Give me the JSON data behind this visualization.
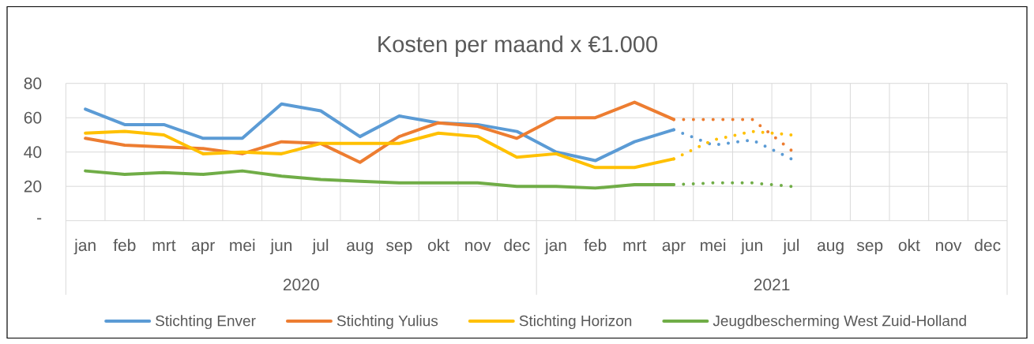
{
  "chart_data": {
    "type": "line",
    "title": "Kosten per maand x €1.000",
    "categories": [
      "jan",
      "feb",
      "mrt",
      "apr",
      "mei",
      "jun",
      "jul",
      "aug",
      "sep",
      "okt",
      "nov",
      "dec",
      "jan",
      "feb",
      "mrt",
      "apr",
      "mei",
      "jun",
      "jul",
      "aug",
      "sep",
      "okt",
      "nov",
      "dec"
    ],
    "series": [
      {
        "name": "Stichting Enver",
        "color": "#5b9bd5",
        "values": [
          65,
          56,
          56,
          48,
          48,
          68,
          64,
          49,
          61,
          57,
          56,
          52,
          40,
          35,
          46,
          53,
          null,
          null,
          null,
          null,
          null,
          null,
          null,
          null
        ]
      },
      {
        "name": "Stichting Yulius",
        "color": "#ed7d31",
        "values": [
          48,
          44,
          43,
          42,
          39,
          46,
          45,
          34,
          49,
          57,
          55,
          48,
          60,
          60,
          69,
          59,
          null,
          null,
          null,
          null,
          null,
          null,
          null,
          null
        ]
      },
      {
        "name": "Stichting Horizon",
        "color": "#ffc000",
        "values": [
          51,
          52,
          50,
          39,
          40,
          39,
          45,
          45,
          45,
          51,
          49,
          37,
          39,
          31,
          31,
          36,
          null,
          null,
          null,
          null,
          null,
          null,
          null,
          null
        ]
      },
      {
        "name": "Jeugdbescherming West Zuid-Holland",
        "color": "#70ad47",
        "values": [
          29,
          27,
          28,
          27,
          29,
          26,
          24,
          23,
          22,
          22,
          22,
          20,
          20,
          19,
          21,
          21,
          null,
          null,
          null,
          null,
          null,
          null,
          null,
          null
        ]
      },
      {
        "color": "#5b9bd5",
        "line_style": "dotted",
        "values": [
          null,
          null,
          null,
          null,
          null,
          null,
          null,
          null,
          null,
          null,
          null,
          null,
          null,
          null,
          null,
          53,
          44,
          47,
          36,
          null,
          null,
          null,
          null,
          null
        ]
      },
      {
        "color": "#ed7d31",
        "line_style": "dotted",
        "values": [
          null,
          null,
          null,
          null,
          null,
          null,
          null,
          null,
          null,
          null,
          null,
          null,
          null,
          null,
          null,
          59,
          59,
          59,
          41,
          null,
          null,
          null,
          null,
          null
        ]
      },
      {
        "color": "#ffc000",
        "line_style": "dotted",
        "values": [
          null,
          null,
          null,
          null,
          null,
          null,
          null,
          null,
          null,
          null,
          null,
          null,
          null,
          null,
          null,
          36,
          47,
          52,
          50,
          null,
          null,
          null,
          null,
          null
        ]
      },
      {
        "color": "#70ad47",
        "line_style": "dotted",
        "values": [
          null,
          null,
          null,
          null,
          null,
          null,
          null,
          null,
          null,
          null,
          null,
          null,
          null,
          null,
          null,
          21,
          22,
          22,
          20,
          null,
          null,
          null,
          null,
          null
        ]
      }
    ],
    "ylim": [
      0,
      80
    ],
    "yticks": [
      {
        "value": 0,
        "label": "-"
      },
      20,
      40,
      60,
      80
    ],
    "grid": true,
    "legend": "bottom",
    "annotations": [
      "2020",
      "2021"
    ]
  }
}
